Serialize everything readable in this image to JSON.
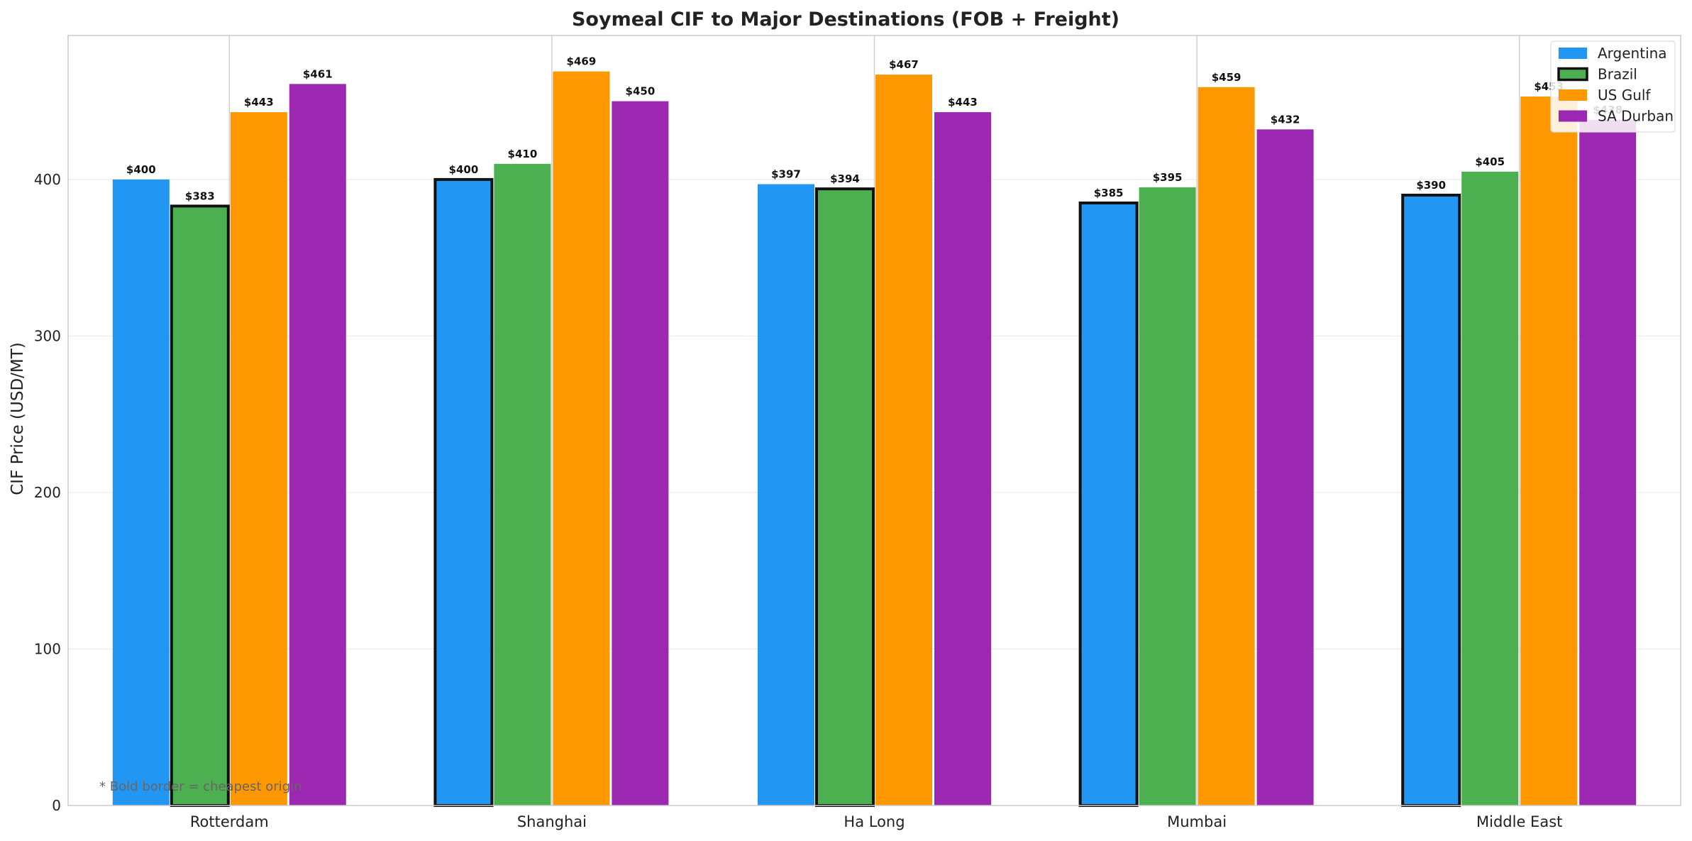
{
  "chart_data": {
    "type": "bar",
    "title": "Soymeal CIF to Major Destinations (FOB + Freight)",
    "xlabel": "",
    "ylabel": "CIF Price (USD/MT)",
    "ylim": [
      0,
      492
    ],
    "yticks": [
      0,
      100,
      200,
      300,
      400
    ],
    "grid": true,
    "legend_position": "top-right",
    "categories": [
      "Rotterdam",
      "Shanghai",
      "Ha Long",
      "Mumbai",
      "Middle East"
    ],
    "value_prefix": "$",
    "series": [
      {
        "name": "Argentina",
        "color": "#2196F3",
        "values": [
          400,
          400,
          397,
          385,
          390
        ]
      },
      {
        "name": "Brazil",
        "color": "#4CAF50",
        "values": [
          383,
          410,
          394,
          395,
          405
        ]
      },
      {
        "name": "US Gulf",
        "color": "#FF9800",
        "values": [
          443,
          469,
          467,
          459,
          453
        ]
      },
      {
        "name": "SA Durban",
        "color": "#9C27B0",
        "values": [
          461,
          450,
          443,
          432,
          438
        ]
      }
    ],
    "cheapest_series_index": [
      1,
      0,
      1,
      0,
      0
    ],
    "legend_bold_series": "Brazil",
    "footnote": "* Bold border = cheapest origin"
  }
}
